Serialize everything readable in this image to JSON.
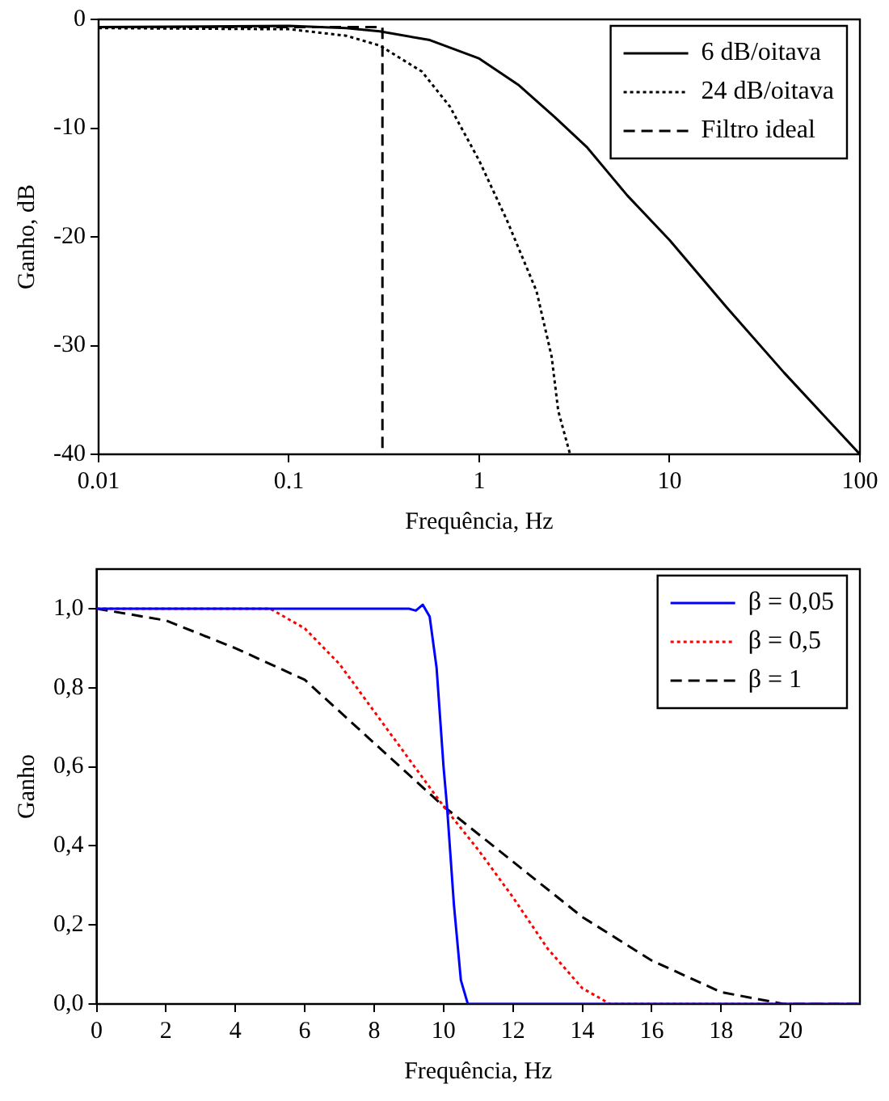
{
  "chart_data": [
    {
      "type": "line",
      "xlabel": "Frequência, Hz",
      "ylabel": "Ganho, dB",
      "log": "x",
      "grid": false,
      "legend": "top right",
      "xlim": [
        0.01,
        100
      ],
      "xticks": [
        0.01,
        0.1,
        1,
        10,
        100
      ],
      "ylim": [
        -40,
        0
      ],
      "yticks": [
        -40,
        -30,
        -20,
        -10,
        0
      ],
      "series": [
        {
          "name": "6 dB/oitava",
          "color": "#000000",
          "line_style": "solid",
          "x": [
            0.01,
            0.1,
            0.2,
            0.3,
            0.55,
            1,
            1.6,
            2.5,
            3.7,
            6,
            10,
            20,
            40,
            100
          ],
          "values": [
            -0.7,
            -0.6,
            -0.8,
            -1.1,
            -1.9,
            -3.6,
            -6,
            -9,
            -11.8,
            -16.2,
            -20.3,
            -26.5,
            -32.5,
            -40
          ]
        },
        {
          "name": "24 dB/oitava",
          "color": "#000000",
          "line_style": "dotted",
          "x": [
            0.01,
            0.1,
            0.2,
            0.3,
            0.5,
            0.7,
            1,
            1.4,
            2,
            2.4,
            2.6,
            3
          ],
          "values": [
            -0.8,
            -0.9,
            -1.5,
            -2.4,
            -4.8,
            -8,
            -13,
            -18.5,
            -25,
            -31,
            -36,
            -40
          ]
        },
        {
          "name": "Filtro ideal",
          "color": "#000000",
          "line_style": "dashed",
          "x": [
            0.01,
            0.31,
            0.31
          ],
          "values": [
            -0.7,
            -0.7,
            -40
          ]
        }
      ]
    },
    {
      "type": "line",
      "xlabel": "Frequência, Hz",
      "ylabel": "Ganho",
      "grid": false,
      "legend": "top right",
      "xlim": [
        0,
        22
      ],
      "xticks": [
        0,
        2,
        4,
        6,
        8,
        10,
        12,
        14,
        16,
        18,
        20
      ],
      "ylim": [
        0,
        1.1
      ],
      "yticks": [
        {
          "value": 0,
          "label": "0,0"
        },
        {
          "value": 0.2,
          "label": "0,2"
        },
        {
          "value": 0.4,
          "label": "0,4"
        },
        {
          "value": 0.6,
          "label": "0,6"
        },
        {
          "value": 0.8,
          "label": "0,8"
        },
        {
          "value": 1,
          "label": "1,0"
        }
      ],
      "series": [
        {
          "name": "β = 0,05",
          "color": "#0000ff",
          "line_style": "solid",
          "x": [
            0,
            9,
            9.2,
            9.4,
            9.6,
            9.8,
            10,
            10.1,
            10.3,
            10.5,
            10.7,
            22
          ],
          "values": [
            1,
            1,
            0.995,
            1.01,
            0.98,
            0.85,
            0.6,
            0.5,
            0.25,
            0.06,
            0,
            0
          ]
        },
        {
          "name": "β = 0,5",
          "color": "#ff0000",
          "line_style": "dotted",
          "x": [
            0,
            5,
            6,
            7,
            8,
            9,
            10,
            11,
            12,
            13,
            14,
            14.8,
            22
          ],
          "values": [
            1,
            1,
            0.95,
            0.86,
            0.74,
            0.62,
            0.5,
            0.39,
            0.27,
            0.14,
            0.04,
            0,
            0
          ]
        },
        {
          "name": "β = 1",
          "color": "#000000",
          "line_style": "dashed",
          "x": [
            0,
            2,
            4,
            6,
            8,
            10,
            12,
            14,
            16,
            18,
            19.8,
            22
          ],
          "values": [
            1,
            0.97,
            0.9,
            0.82,
            0.66,
            0.5,
            0.36,
            0.22,
            0.11,
            0.03,
            0,
            0
          ]
        }
      ]
    }
  ]
}
